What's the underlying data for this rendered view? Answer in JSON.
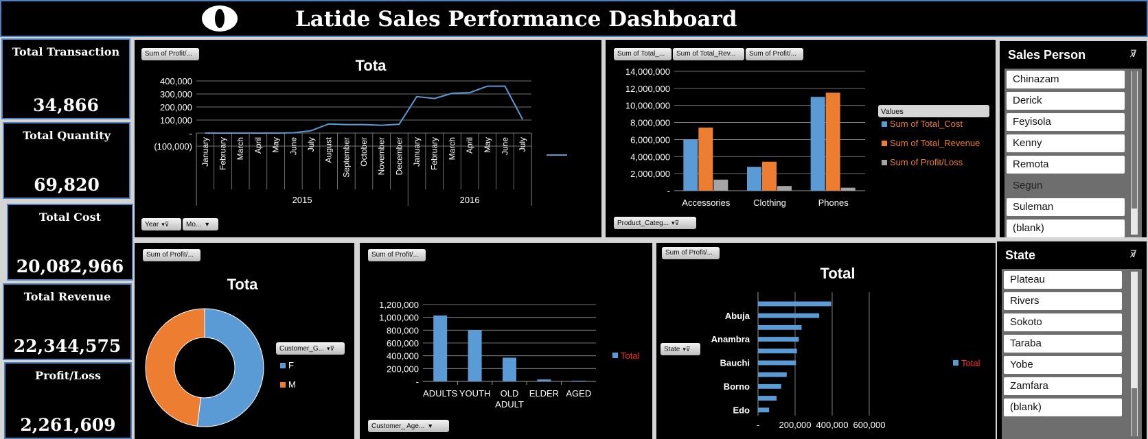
{
  "dashboard": {
    "title": "Latide Sales Performance Dashboard"
  },
  "kpis": [
    {
      "label": "Total Transaction",
      "value": "34,866"
    },
    {
      "label": "Total Quantity",
      "value": "69,820"
    },
    {
      "label": "Total Cost",
      "value": "20,082,966"
    },
    {
      "label": "Total Revenue",
      "value": "22,344,575"
    },
    {
      "label": "Profit/Loss",
      "value": "2,261,609"
    }
  ],
  "filters": {
    "line_value": "Sum of Profit/...",
    "line_year": "Year",
    "line_month": "Mo...",
    "bar_values": [
      "Sum of Total_...",
      "Sum of Total_Rev...",
      "Sum of Profit/..."
    ],
    "bar_category": "Product_Categ...",
    "donut_value": "Sum of Profit/...",
    "donut_field": "Customer_G...",
    "age_value": "Sum of Profit/...",
    "age_field": "Customer_ Age...",
    "state_value": "Sum of Profit/...",
    "state_field": "State"
  },
  "colors": {
    "blue": "#5b9bd5",
    "orange": "#ed7d31",
    "gray": "#a5a5a5",
    "legend_red": "#ff2a2a",
    "kpi_border": "#4f81bd"
  },
  "chart_data": [
    {
      "type": "line",
      "title": "Tota",
      "x_months": [
        "January",
        "February",
        "March",
        "April",
        "May",
        "June",
        "July",
        "August",
        "September",
        "October",
        "November",
        "December",
        "January",
        "February",
        "March",
        "April",
        "May",
        "June",
        "July"
      ],
      "x_years": [
        {
          "label": "2015",
          "span": 12
        },
        {
          "label": "2016",
          "span": 7
        }
      ],
      "values": [
        0,
        0,
        0,
        0,
        0,
        2000,
        18000,
        70000,
        65000,
        65000,
        60000,
        68000,
        280000,
        265000,
        305000,
        310000,
        360000,
        360000,
        105000
      ],
      "ylim": [
        -100000,
        400000
      ],
      "yticks": [
        {
          "v": 400000,
          "label": "400,000"
        },
        {
          "v": 300000,
          "label": "300,000"
        },
        {
          "v": 200000,
          "label": "200,000"
        },
        {
          "v": 100000,
          "label": "100,000"
        },
        {
          "v": 0,
          "label": "-"
        },
        {
          "v": -100000,
          "label": "(100,000)"
        }
      ],
      "legend": [
        {
          "name": "",
          "color": "#5b9bd5"
        }
      ]
    },
    {
      "type": "bar",
      "categories": [
        "Accessories",
        "Clothing",
        "Phones"
      ],
      "legend_title": "Values",
      "series": [
        {
          "name": "Sum of Total_Cost",
          "color": "#5b9bd5",
          "values": [
            6000000,
            2800000,
            11000000
          ]
        },
        {
          "name": "Sum of Total_Revenue",
          "color": "#ed7d31",
          "values": [
            7400000,
            3400000,
            11500000
          ]
        },
        {
          "name": "Sum of Profit/Loss",
          "color": "#a5a5a5",
          "values": [
            1300000,
            550000,
            350000
          ]
        }
      ],
      "ylim": [
        0,
        14000000
      ],
      "yticks": [
        {
          "v": 14000000,
          "label": "14,000,000"
        },
        {
          "v": 12000000,
          "label": "12,000,000"
        },
        {
          "v": 10000000,
          "label": "10,000,000"
        },
        {
          "v": 8000000,
          "label": "8,000,000"
        },
        {
          "v": 6000000,
          "label": "6,000,000"
        },
        {
          "v": 4000000,
          "label": "4,000,000"
        },
        {
          "v": 2000000,
          "label": "2,000,000"
        },
        {
          "v": 0,
          "label": "-"
        }
      ]
    },
    {
      "type": "pie",
      "title": "Tota",
      "slices": [
        {
          "name": "F",
          "value": 52,
          "color": "#5b9bd5"
        },
        {
          "name": "M",
          "value": 48,
          "color": "#ed7d31"
        }
      ]
    },
    {
      "type": "bar",
      "categories": [
        "ADULTS",
        "YOUTH",
        "OLD ADULT",
        "ELDER",
        "AGED"
      ],
      "values": [
        1030000,
        800000,
        370000,
        30000,
        10000
      ],
      "ylim": [
        0,
        1200000
      ],
      "yticks": [
        {
          "v": 1200000,
          "label": "1,200,000"
        },
        {
          "v": 1000000,
          "label": "1,000,000"
        },
        {
          "v": 800000,
          "label": "800,000"
        },
        {
          "v": 600000,
          "label": "600,000"
        },
        {
          "v": 400000,
          "label": "400,000"
        },
        {
          "v": 200000,
          "label": "200,000"
        },
        {
          "v": 0,
          "label": "-"
        }
      ],
      "legend": [
        {
          "name": "Total",
          "color": "#5b9bd5"
        }
      ]
    },
    {
      "type": "bar",
      "orientation": "horizontal",
      "title": "Total",
      "category_labels": [
        {
          "index": 1,
          "label": "Abuja"
        },
        {
          "index": 3,
          "label": "Anambra"
        },
        {
          "index": 5,
          "label": "Bauchi"
        },
        {
          "index": 7,
          "label": "Borno"
        },
        {
          "index": 9,
          "label": "Edo"
        }
      ],
      "values": [
        395000,
        330000,
        235000,
        220000,
        210000,
        205000,
        155000,
        125000,
        100000,
        60000
      ],
      "xlim": [
        0,
        600000
      ],
      "xticks": [
        {
          "v": 0,
          "label": "-"
        },
        {
          "v": 200000,
          "label": "200,000"
        },
        {
          "v": 400000,
          "label": "400,000"
        },
        {
          "v": 600000,
          "label": "600,000"
        }
      ],
      "legend": [
        {
          "name": "Total",
          "color": "#5b9bd5"
        }
      ]
    }
  ],
  "slicers": {
    "sales_person": {
      "title": "Sales Person",
      "items": [
        {
          "label": "Chinazam",
          "selected": true
        },
        {
          "label": "Derick",
          "selected": true
        },
        {
          "label": "Feyisola",
          "selected": true
        },
        {
          "label": "Kenny",
          "selected": true
        },
        {
          "label": "Remota",
          "selected": true
        },
        {
          "label": "Segun",
          "selected": false
        },
        {
          "label": "Suleman",
          "selected": true
        },
        {
          "label": "(blank)",
          "selected": true
        }
      ]
    },
    "state": {
      "title": "State",
      "items": [
        {
          "label": "Plateau",
          "selected": true
        },
        {
          "label": "Rivers",
          "selected": true
        },
        {
          "label": "Sokoto",
          "selected": true
        },
        {
          "label": "Taraba",
          "selected": true
        },
        {
          "label": "Yobe",
          "selected": true
        },
        {
          "label": "Zamfara",
          "selected": true
        },
        {
          "label": "(blank)",
          "selected": true
        }
      ]
    }
  }
}
